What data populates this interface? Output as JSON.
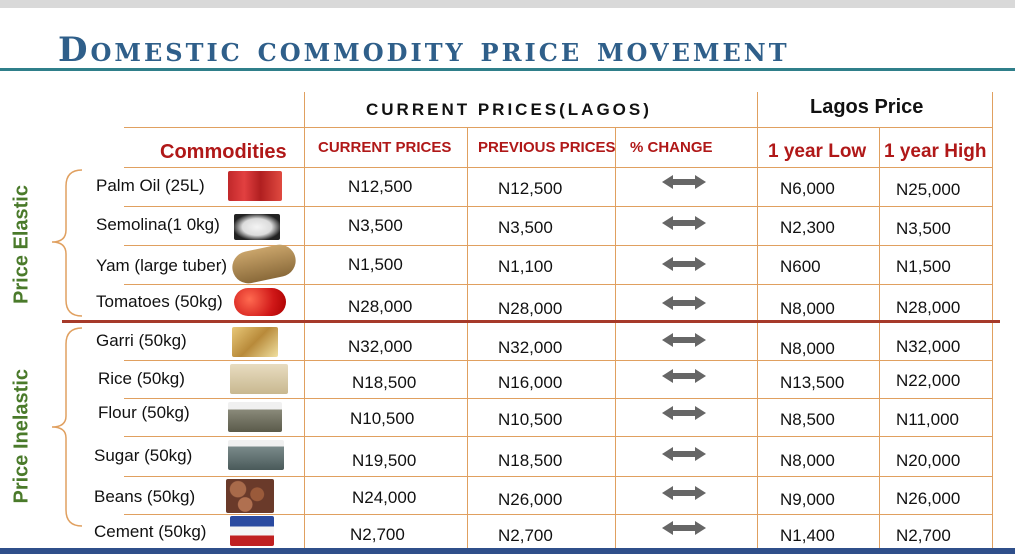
{
  "title": "Domestic commodity price movement",
  "header": {
    "group_current": "CURRENT PRICES(LAGOS)",
    "group_lagos": "Lagos Price",
    "commodities": "Commodities",
    "current_prices": "CURRENT PRICES",
    "previous_prices": "PREVIOUS PRICES",
    "pct_change": "% CHANGE",
    "year_low": "1 year Low",
    "year_high": "1 year High"
  },
  "groups": {
    "elastic": "Price Elastic",
    "inelastic": "Price Inelastic"
  },
  "change_icon": "double-arrow-icon",
  "colors": {
    "title": "#2f5f8a",
    "header_red": "#b01818",
    "group_green": "#4a7a2a",
    "grid_orange": "#e0a060",
    "divider": "#a63a2a"
  },
  "rows": [
    {
      "name": "Palm Oil (25L)",
      "current": "N12,500",
      "previous": "N12,500",
      "low": "N6,000",
      "high": "N25,000"
    },
    {
      "name": "Semolina(1 0kg)",
      "current": "N3,500",
      "previous": "N3,500",
      "low": "N2,300",
      "high": "N3,500"
    },
    {
      "name": "Yam (large tuber)",
      "current": "N1,500",
      "previous": "N1,100",
      "low": "N600",
      "high": "N1,500"
    },
    {
      "name": "Tomatoes (50kg)",
      "current": "N28,000",
      "previous": "N28,000",
      "low": "N8,000",
      "high": "N28,000"
    },
    {
      "name": "Garri (50kg)",
      "current": "N32,000",
      "previous": "N32,000",
      "low": "N8,000",
      "high": "N32,000"
    },
    {
      "name": "Rice (50kg)",
      "current": "N18,500",
      "previous": "N16,000",
      "low": "N13,500",
      "high": "N22,000"
    },
    {
      "name": "Flour (50kg)",
      "current": "N10,500",
      "previous": "N10,500",
      "low": "N8,500",
      "high": "N11,000"
    },
    {
      "name": "Sugar (50kg)",
      "current": "N19,500",
      "previous": "N18,500",
      "low": "N8,000",
      "high": "N20,000"
    },
    {
      "name": "Beans (50kg)",
      "current": "N24,000",
      "previous": "N26,000",
      "low": "N9,000",
      "high": "N26,000"
    },
    {
      "name": "Cement (50kg)",
      "current": "N2,700",
      "previous": "N2,700",
      "low": "N1,400",
      "high": "N2,700"
    }
  ]
}
